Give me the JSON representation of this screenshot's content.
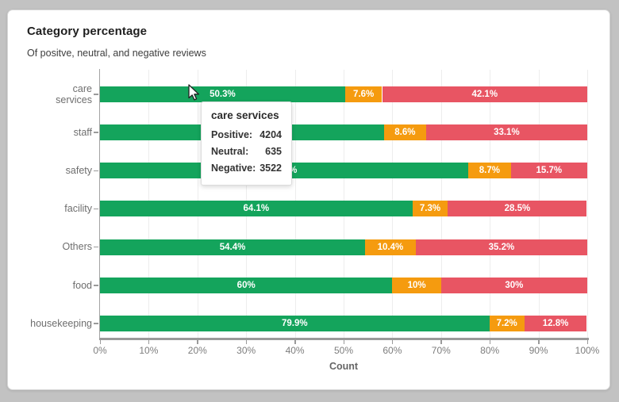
{
  "card": {
    "title": "Category percentage",
    "subtitle": "Of positve, neutral, and negative reviews"
  },
  "chart_data": {
    "type": "bar",
    "orientation": "horizontal",
    "stacked": true,
    "title": "Category percentage",
    "subtitle": "Of positve, neutral, and negative reviews",
    "xlabel": "Count",
    "xlim": [
      0,
      100
    ],
    "grid": true,
    "categories": [
      "care services",
      "staff",
      "safety",
      "facility",
      "Others",
      "food",
      "housekeeping"
    ],
    "y_tick_labels": [
      "care\nservices",
      "staff",
      "safety",
      "facility",
      "Others",
      "food",
      "housekeeping"
    ],
    "x_tick_labels": [
      "0%",
      "10%",
      "20%",
      "30%",
      "40%",
      "50%",
      "60%",
      "70%",
      "80%",
      "90%",
      "100%"
    ],
    "series": [
      {
        "name": "Positive",
        "color": "#14a45c",
        "values": [
          50.3,
          58.3,
          75.6,
          64.1,
          54.4,
          60,
          79.9
        ],
        "labels": [
          "50.3%",
          "58.3%",
          "75.6%",
          "64.1%",
          "54.4%",
          "60%",
          "79.9%"
        ]
      },
      {
        "name": "Neutral",
        "color": "#f59b0f",
        "values": [
          7.6,
          8.6,
          8.7,
          7.3,
          10.4,
          10,
          7.2
        ],
        "labels": [
          "7.6%",
          "8.6%",
          "8.7%",
          "7.3%",
          "10.4%",
          "10%",
          "7.2%"
        ]
      },
      {
        "name": "Negative",
        "color": "#e85563",
        "values": [
          42.1,
          33.1,
          15.7,
          28.5,
          35.2,
          30,
          12.8
        ],
        "labels": [
          "42.1%",
          "33.1%",
          "15.7%",
          "28.5%",
          "35.2%",
          "30%",
          "12.8%"
        ]
      }
    ]
  },
  "tooltip": {
    "title": "care services",
    "rows": [
      {
        "label": "Positive:",
        "value": "4204"
      },
      {
        "label": "Neutral:",
        "value": "635"
      },
      {
        "label": "Negative:",
        "value": "3522"
      }
    ]
  },
  "colors": {
    "positive": "#14a45c",
    "neutral": "#f59b0f",
    "negative": "#e85563",
    "frame": "#c2c2c2",
    "axis": "#9a9a9a",
    "grid": "#ededed"
  }
}
